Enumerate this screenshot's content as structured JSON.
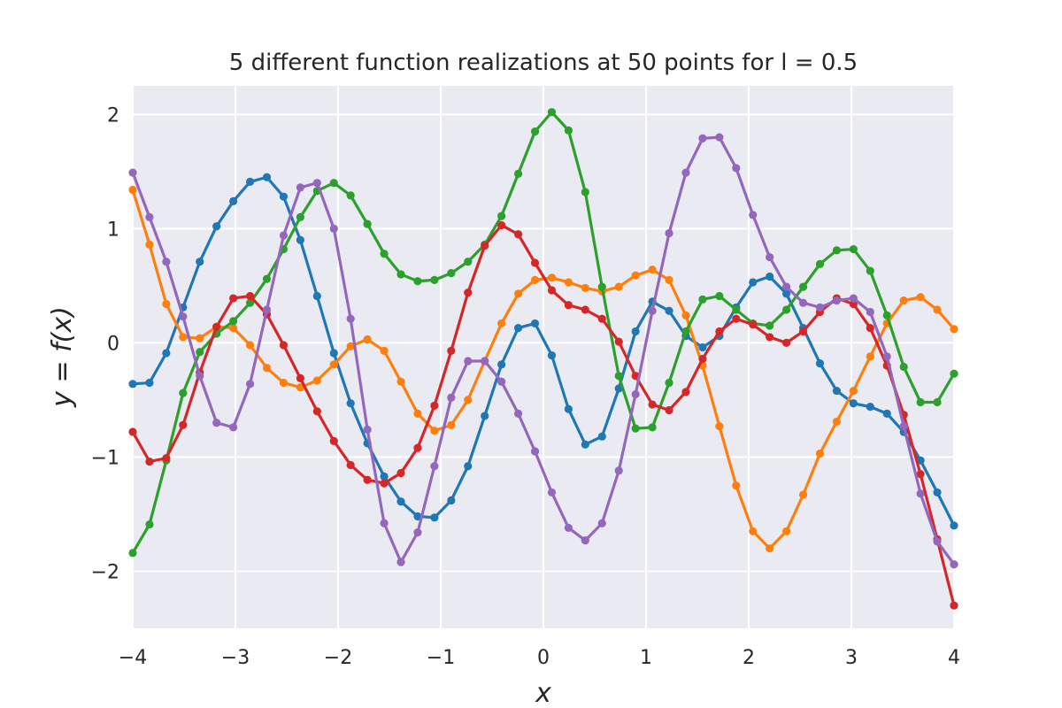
{
  "chart_data": {
    "type": "line",
    "title": "5 different function realizations at 50 points for l = 0.5",
    "xlabel": "x",
    "ylabel": "y = f(x)",
    "xlim": [
      -4,
      4
    ],
    "ylim": [
      -2.5,
      2.25
    ],
    "xticks": [
      -4,
      -3,
      -2,
      -1,
      0,
      1,
      2,
      3,
      4
    ],
    "xtick_labels": [
      "−4",
      "−3",
      "−2",
      "−1",
      "0",
      "1",
      "2",
      "3",
      "4"
    ],
    "yticks": [
      -2,
      -1,
      0,
      1,
      2
    ],
    "ytick_labels": [
      "−2",
      "−1",
      "0",
      "1",
      "2"
    ],
    "grid": true,
    "markers": true,
    "background": "#eaeaf2",
    "x_start": -4,
    "x_end": 4,
    "n_points": 50,
    "series": [
      {
        "color": "#1f77b4",
        "values": [
          -0.36,
          -0.35,
          -0.09,
          0.31,
          0.71,
          1.02,
          1.24,
          1.41,
          1.45,
          1.28,
          0.9,
          0.41,
          -0.09,
          -0.53,
          -0.88,
          -1.17,
          -1.39,
          -1.52,
          -1.53,
          -1.38,
          -1.08,
          -0.64,
          -0.19,
          0.13,
          0.17,
          -0.11,
          -0.58,
          -0.89,
          -0.82,
          -0.4,
          0.1,
          0.36,
          0.28,
          0.06,
          -0.04,
          0.06,
          0.31,
          0.53,
          0.58,
          0.43,
          0.13,
          -0.18,
          -0.42,
          -0.53,
          -0.56,
          -0.62,
          -0.78,
          -1.03,
          -1.31,
          -1.6
        ]
      },
      {
        "color": "#ff7f0e",
        "values": [
          1.34,
          0.86,
          0.34,
          0.05,
          0.04,
          0.14,
          0.13,
          -0.02,
          -0.22,
          -0.35,
          -0.39,
          -0.33,
          -0.19,
          -0.03,
          0.03,
          -0.07,
          -0.34,
          -0.62,
          -0.77,
          -0.72,
          -0.5,
          -0.16,
          0.17,
          0.43,
          0.55,
          0.57,
          0.53,
          0.48,
          0.45,
          0.49,
          0.59,
          0.64,
          0.55,
          0.24,
          -0.2,
          -0.73,
          -1.25,
          -1.65,
          -1.8,
          -1.65,
          -1.33,
          -0.97,
          -0.69,
          -0.42,
          -0.12,
          0.17,
          0.37,
          0.4,
          0.29,
          0.12
        ]
      },
      {
        "color": "#2ca02c",
        "values": [
          -1.84,
          -1.59,
          -1.03,
          -0.44,
          -0.08,
          0.08,
          0.19,
          0.35,
          0.56,
          0.82,
          1.1,
          1.33,
          1.4,
          1.29,
          1.04,
          0.78,
          0.6,
          0.54,
          0.55,
          0.61,
          0.71,
          0.86,
          1.11,
          1.48,
          1.85,
          2.02,
          1.86,
          1.32,
          0.49,
          -0.29,
          -0.75,
          -0.74,
          -0.35,
          0.1,
          0.38,
          0.41,
          0.29,
          0.17,
          0.15,
          0.29,
          0.49,
          0.69,
          0.81,
          0.82,
          0.63,
          0.24,
          -0.21,
          -0.52,
          -0.52,
          -0.27
        ]
      },
      {
        "color": "#d62728",
        "values": [
          -0.78,
          -1.04,
          -1.01,
          -0.72,
          -0.26,
          0.14,
          0.39,
          0.41,
          0.25,
          -0.02,
          -0.31,
          -0.6,
          -0.86,
          -1.07,
          -1.2,
          -1.23,
          -1.14,
          -0.92,
          -0.55,
          -0.07,
          0.44,
          0.85,
          1.03,
          0.95,
          0.7,
          0.46,
          0.33,
          0.29,
          0.21,
          0.01,
          -0.29,
          -0.54,
          -0.59,
          -0.43,
          -0.14,
          0.1,
          0.21,
          0.16,
          0.05,
          0.0,
          0.1,
          0.27,
          0.39,
          0.34,
          0.13,
          -0.2,
          -0.63,
          -1.15,
          -1.72,
          -2.3
        ]
      },
      {
        "color": "#9467bd",
        "values": [
          1.49,
          1.1,
          0.71,
          0.23,
          -0.29,
          -0.7,
          -0.74,
          -0.36,
          0.29,
          0.94,
          1.36,
          1.4,
          1.0,
          0.21,
          -0.76,
          -1.58,
          -1.92,
          -1.66,
          -1.08,
          -0.48,
          -0.16,
          -0.16,
          -0.34,
          -0.62,
          -0.95,
          -1.31,
          -1.62,
          -1.73,
          -1.58,
          -1.12,
          -0.45,
          0.28,
          0.96,
          1.49,
          1.79,
          1.8,
          1.53,
          1.12,
          0.75,
          0.49,
          0.35,
          0.31,
          0.37,
          0.39,
          0.27,
          -0.12,
          -0.73,
          -1.32,
          -1.74,
          -1.94
        ]
      }
    ]
  }
}
